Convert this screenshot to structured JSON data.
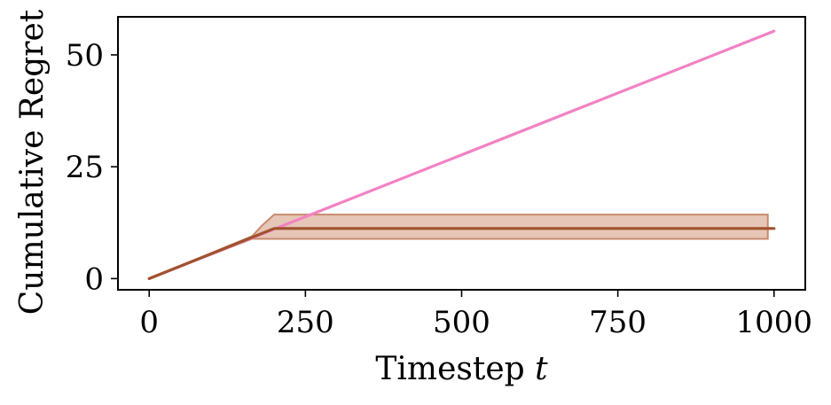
{
  "chart_data": {
    "type": "line",
    "title": "",
    "xlabel": "Timestep",
    "xlabel_var": "t",
    "ylabel": "Cumulative Regret",
    "xlim": [
      -50,
      1050
    ],
    "ylim": [
      -2.5,
      58.5
    ],
    "xticks": [
      0,
      250,
      500,
      750,
      1000
    ],
    "yticks": [
      0,
      25,
      50
    ],
    "grid": false,
    "legend": "none",
    "series": [
      {
        "color": "#f282c3",
        "x": [
          0,
          1000
        ],
        "y": [
          0,
          55.3
        ]
      },
      {
        "color": "#a0522d",
        "x": [
          0,
          200,
          1000
        ],
        "y": [
          0,
          11.2,
          11.2
        ],
        "band": {
          "x": [
            0,
            165,
            180,
            200,
            990
          ],
          "lower": [
            0,
            8.9,
            8.9,
            8.9,
            8.9
          ],
          "upper": [
            0,
            9.5,
            11.8,
            14.3,
            14.3
          ],
          "fill": "#d9a88f",
          "stroke": "#c88a6e"
        }
      }
    ]
  }
}
